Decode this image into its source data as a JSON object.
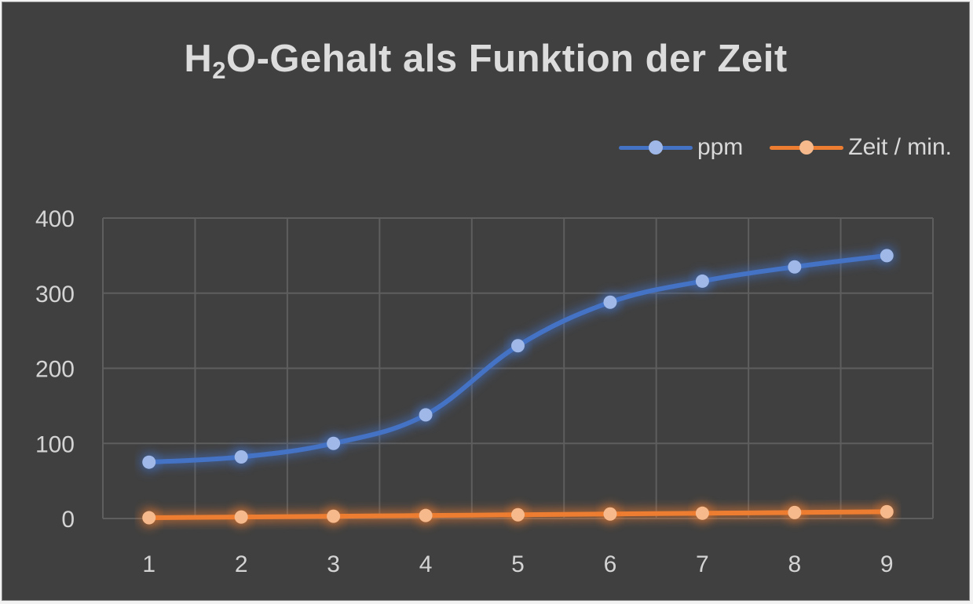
{
  "colors": {
    "background": "#404040",
    "grid": "#5e5e5e",
    "ppm_line": "#4472c4",
    "ppm_marker": "#9fb8e8",
    "zeit_line": "#ed7d31",
    "zeit_marker": "#f6b98c"
  },
  "title": {
    "main": "H",
    "sub": "2",
    "rest": "O-Gehalt als Funktion der Zeit"
  },
  "chart_data": {
    "type": "line",
    "title": "H2O-Gehalt als Funktion der Zeit",
    "categories": [
      "1",
      "2",
      "3",
      "4",
      "5",
      "6",
      "7",
      "8",
      "9"
    ],
    "series": [
      {
        "name": "ppm",
        "values": [
          75,
          82,
          100,
          138,
          230,
          288,
          316,
          335,
          350
        ]
      },
      {
        "name": "Zeit / min.",
        "values": [
          1,
          2,
          3,
          4,
          5,
          6,
          7,
          8,
          9
        ]
      }
    ],
    "yticks": [
      "0",
      "100",
      "200",
      "300",
      "400"
    ],
    "ylim": [
      0,
      400
    ],
    "grid": true,
    "legend_position": "top-right",
    "markers": true
  }
}
